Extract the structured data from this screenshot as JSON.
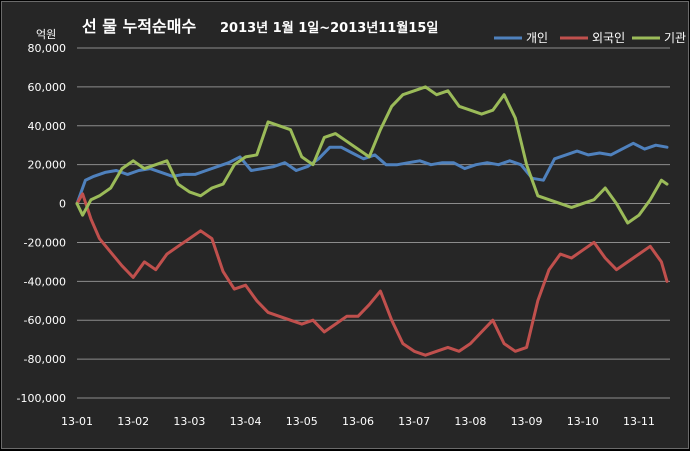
{
  "chart_data": {
    "type": "line",
    "title_main": "선 물 누적순매수",
    "title_sub": "2013년 1월 1일~2013년11월15일",
    "unit_label": "억원",
    "y_ticks": [
      "80,000",
      "60,000",
      "40,000",
      "20,000",
      "0",
      "-20,000",
      "-40,000",
      "-60,000",
      "-80,000",
      "-100,000"
    ],
    "x_ticks": [
      "13-01",
      "13-02",
      "13-03",
      "13-04",
      "13-05",
      "13-06",
      "13-07",
      "13-08",
      "13-09",
      "13-10",
      "13-11"
    ],
    "ylim": [
      -100000,
      80000
    ],
    "xlim": [
      0,
      10.5
    ],
    "grid": "horizontal",
    "legend_position": "top-right",
    "colors": {
      "background": "#262626",
      "gridline": "#8c8c8c",
      "text": "#ffffff"
    },
    "series": [
      {
        "name": "개인",
        "color": "#4f81bd",
        "x": [
          0,
          0.15,
          0.3,
          0.5,
          0.7,
          0.9,
          1.1,
          1.3,
          1.5,
          1.7,
          1.9,
          2.1,
          2.3,
          2.5,
          2.7,
          2.9,
          3.1,
          3.3,
          3.5,
          3.7,
          3.9,
          4.1,
          4.3,
          4.5,
          4.7,
          4.9,
          5.1,
          5.3,
          5.5,
          5.7,
          5.9,
          6.1,
          6.3,
          6.5,
          6.7,
          6.9,
          7.1,
          7.3,
          7.5,
          7.7,
          7.9,
          8.1,
          8.3,
          8.5,
          8.7,
          8.9,
          9.1,
          9.3,
          9.5,
          9.7,
          9.9,
          10.1,
          10.3,
          10.5
        ],
        "values": [
          0,
          12000,
          14000,
          16000,
          17000,
          15000,
          17000,
          18000,
          16000,
          14000,
          15000,
          15000,
          17000,
          19000,
          21000,
          24000,
          17000,
          18000,
          19000,
          21000,
          17000,
          19000,
          23000,
          29000,
          29000,
          26000,
          23000,
          25000,
          20000,
          20000,
          21000,
          22000,
          20000,
          21000,
          21000,
          18000,
          20000,
          21000,
          20000,
          22000,
          20000,
          13000,
          12000,
          23000,
          25000,
          27000,
          25000,
          26000,
          25000,
          28000,
          31000,
          28000,
          30000,
          29000
        ]
      },
      {
        "name": "외국인",
        "color": "#c0504d",
        "x": [
          0,
          0.1,
          0.25,
          0.4,
          0.6,
          0.8,
          1.0,
          1.2,
          1.4,
          1.6,
          1.8,
          2.0,
          2.2,
          2.4,
          2.6,
          2.8,
          3.0,
          3.2,
          3.4,
          3.6,
          3.8,
          4.0,
          4.2,
          4.4,
          4.6,
          4.8,
          5.0,
          5.2,
          5.4,
          5.6,
          5.8,
          6.0,
          6.2,
          6.4,
          6.6,
          6.8,
          7.0,
          7.2,
          7.4,
          7.6,
          7.8,
          8.0,
          8.2,
          8.4,
          8.6,
          8.8,
          9.0,
          9.2,
          9.4,
          9.6,
          9.8,
          10.0,
          10.2,
          10.4,
          10.5
        ],
        "values": [
          0,
          5000,
          -8000,
          -18000,
          -25000,
          -32000,
          -38000,
          -30000,
          -34000,
          -26000,
          -22000,
          -18000,
          -14000,
          -18000,
          -35000,
          -44000,
          -42000,
          -50000,
          -56000,
          -58000,
          -60000,
          -62000,
          -60000,
          -66000,
          -62000,
          -58000,
          -58000,
          -52000,
          -45000,
          -60000,
          -72000,
          -76000,
          -78000,
          -76000,
          -74000,
          -76000,
          -72000,
          -66000,
          -60000,
          -72000,
          -76000,
          -74000,
          -50000,
          -34000,
          -26000,
          -28000,
          -24000,
          -20000,
          -28000,
          -34000,
          -30000,
          -26000,
          -22000,
          -30000,
          -40000
        ]
      },
      {
        "name": "기관",
        "color": "#9bbb59",
        "x": [
          0,
          0.1,
          0.25,
          0.4,
          0.6,
          0.8,
          1.0,
          1.2,
          1.4,
          1.6,
          1.8,
          2.0,
          2.2,
          2.4,
          2.6,
          2.8,
          3.0,
          3.2,
          3.4,
          3.6,
          3.8,
          4.0,
          4.2,
          4.4,
          4.6,
          4.8,
          5.0,
          5.2,
          5.4,
          5.6,
          5.8,
          6.0,
          6.2,
          6.4,
          6.6,
          6.8,
          7.0,
          7.2,
          7.4,
          7.6,
          7.8,
          8.0,
          8.2,
          8.4,
          8.6,
          8.8,
          9.0,
          9.2,
          9.4,
          9.6,
          9.8,
          10.0,
          10.2,
          10.4,
          10.5
        ],
        "values": [
          0,
          -6000,
          2000,
          4000,
          8000,
          18000,
          22000,
          18000,
          20000,
          22000,
          10000,
          6000,
          4000,
          8000,
          10000,
          20000,
          24000,
          25000,
          42000,
          40000,
          38000,
          24000,
          20000,
          34000,
          36000,
          32000,
          28000,
          24000,
          38000,
          50000,
          56000,
          58000,
          60000,
          56000,
          58000,
          50000,
          48000,
          46000,
          48000,
          56000,
          44000,
          20000,
          4000,
          2000,
          0,
          -2000,
          0,
          2000,
          8000,
          0,
          -10000,
          -6000,
          2000,
          12000,
          10000
        ]
      }
    ]
  }
}
